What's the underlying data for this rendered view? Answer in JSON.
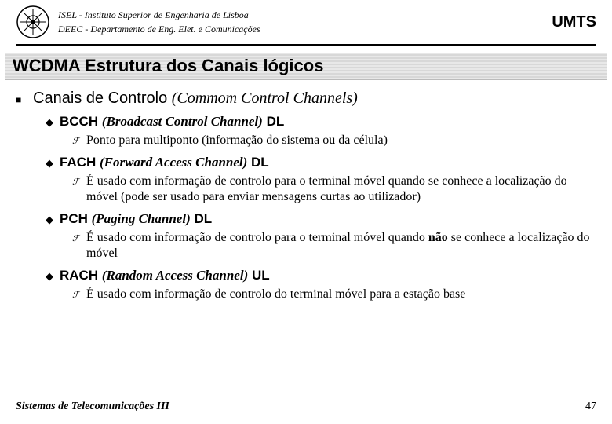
{
  "header": {
    "line1": "ISEL - Instituto Superior de Engenharia de Lisboa",
    "line2": "DEEC - Departamento de Eng. Elet. e Comunicações",
    "right": "UMTS"
  },
  "title": "WCDMA Estrutura dos Canais lógicos",
  "main": {
    "label_plain": "Canais de Controlo ",
    "label_ital": "(Commom Control Channels)"
  },
  "items": [
    {
      "abbr": "BCCH ",
      "ital": "(Broadcast Control Channel)",
      "tail": " DL",
      "sub_pre": "",
      "sub_bold": "",
      "sub_post": "Ponto para multiponto (informação do sistema ou da célula)"
    },
    {
      "abbr": "FACH ",
      "ital": "(Forward Access Channel)",
      "tail": " DL",
      "sub_pre": "É usado com informação de controlo para o terminal móvel quando se conhece a localização do móvel (pode ser usado para enviar mensagens curtas ao utilizador)",
      "sub_bold": "",
      "sub_post": ""
    },
    {
      "abbr": "PCH ",
      "ital": "(Paging Channel)",
      "tail": " DL",
      "sub_pre": "É usado com informação de controlo para o terminal móvel quando ",
      "sub_bold": "não",
      "sub_post": " se conhece a localização do móvel"
    },
    {
      "abbr": "RACH ",
      "ital": "(Random Access Channel)",
      "tail": " UL",
      "sub_pre": "É usado com informação de controlo do terminal móvel para a estação base",
      "sub_bold": "",
      "sub_post": ""
    }
  ],
  "footer": {
    "left": "Sistemas de Telecomunicações III",
    "page": "47"
  },
  "colors": {
    "bg": "#ffffff",
    "text": "#000000"
  },
  "fontsizes": {
    "title": 22,
    "lvl1": 20,
    "lvl2": 17,
    "lvl3": 16,
    "header": 12,
    "footer": 14
  }
}
